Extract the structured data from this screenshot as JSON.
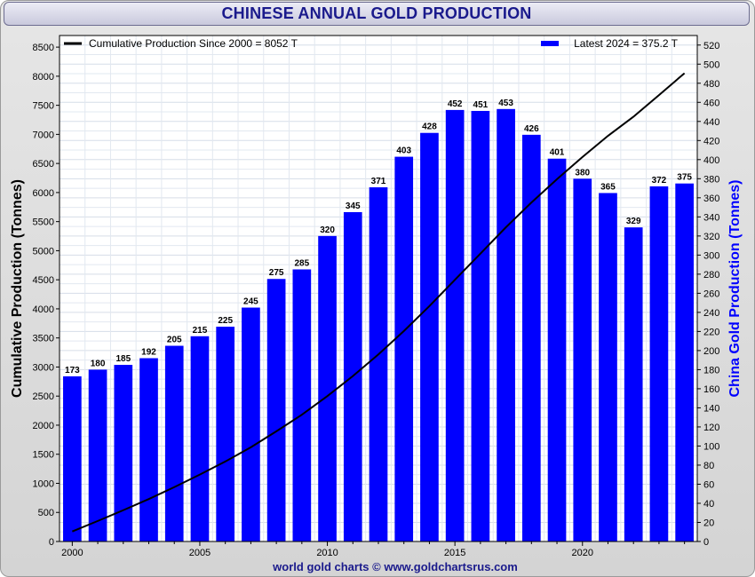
{
  "chart_data": {
    "type": "bar",
    "title": "CHINESE ANNUAL GOLD PRODUCTION",
    "categories": [
      2000,
      2001,
      2002,
      2003,
      2004,
      2005,
      2006,
      2007,
      2008,
      2009,
      2010,
      2011,
      2012,
      2013,
      2014,
      2015,
      2016,
      2017,
      2018,
      2019,
      2020,
      2021,
      2022,
      2023,
      2024
    ],
    "series": [
      {
        "name": "China Gold Production (Tonnes)",
        "axis": "right",
        "color": "#0000ff",
        "values": [
          173,
          180,
          185,
          192,
          205,
          215,
          225,
          245,
          275,
          285,
          320,
          345,
          371,
          403,
          428,
          452,
          451,
          453,
          426,
          401,
          380,
          365,
          329,
          372,
          375
        ],
        "labels": [
          "173",
          "180",
          "185",
          "192",
          "205",
          "215",
          "225",
          "245",
          "275",
          "285",
          "320",
          "345",
          "371",
          "403",
          "428",
          "452",
          "451",
          "453",
          "426",
          "401",
          "380",
          "365",
          "329",
          "372",
          "375"
        ]
      },
      {
        "name": "Cumulative Production (Tonnes)",
        "type": "line",
        "axis": "left",
        "color": "#000000",
        "values": [
          173,
          353,
          538,
          730,
          935,
          1150,
          1375,
          1620,
          1895,
          2180,
          2500,
          2845,
          3216,
          3619,
          4047,
          4499,
          4950,
          5403,
          5829,
          6230,
          6610,
          6975,
          7304,
          7676,
          8052
        ]
      }
    ],
    "y_left": {
      "label": "Cumulative Production (Tonnes)",
      "min": 0,
      "max": 8700,
      "ticks": [
        0,
        500,
        1000,
        1500,
        2000,
        2500,
        3000,
        3500,
        4000,
        4500,
        5000,
        5500,
        6000,
        6500,
        7000,
        7500,
        8000,
        8500
      ],
      "tick_labels": [
        "0",
        "500",
        "1000",
        "1500",
        "2000",
        "2500",
        "3000",
        "3500",
        "4000",
        "4500",
        "5000",
        "5500",
        "6000",
        "6500",
        "7000",
        "7500",
        "8000",
        "8500"
      ]
    },
    "y_right": {
      "label": "China Gold Production (Tonnes)",
      "min": 0,
      "max": 530,
      "ticks": [
        0,
        20,
        40,
        60,
        80,
        100,
        120,
        140,
        160,
        180,
        200,
        220,
        240,
        260,
        280,
        300,
        320,
        340,
        360,
        380,
        400,
        420,
        440,
        460,
        480,
        500,
        520
      ],
      "tick_labels": [
        "0",
        "20",
        "40",
        "60",
        "80",
        "100",
        "120",
        "140",
        "160",
        "180",
        "200",
        "220",
        "240",
        "260",
        "280",
        "300",
        "320",
        "340",
        "360",
        "380",
        "400",
        "420",
        "440",
        "460",
        "480",
        "500",
        "520"
      ]
    },
    "x_axis": {
      "ticks": [
        2000,
        2005,
        2010,
        2015,
        2020
      ],
      "tick_labels": [
        "2000",
        "2005",
        "2010",
        "2015",
        "2020"
      ]
    },
    "legend": {
      "left_label": "Cumulative Production Since 2000 = 8052 T",
      "right_label": "Latest 2024 = 375.2 T",
      "placement": "top"
    },
    "grid": true,
    "footer": "world gold charts © www.goldchartsrus.com"
  }
}
